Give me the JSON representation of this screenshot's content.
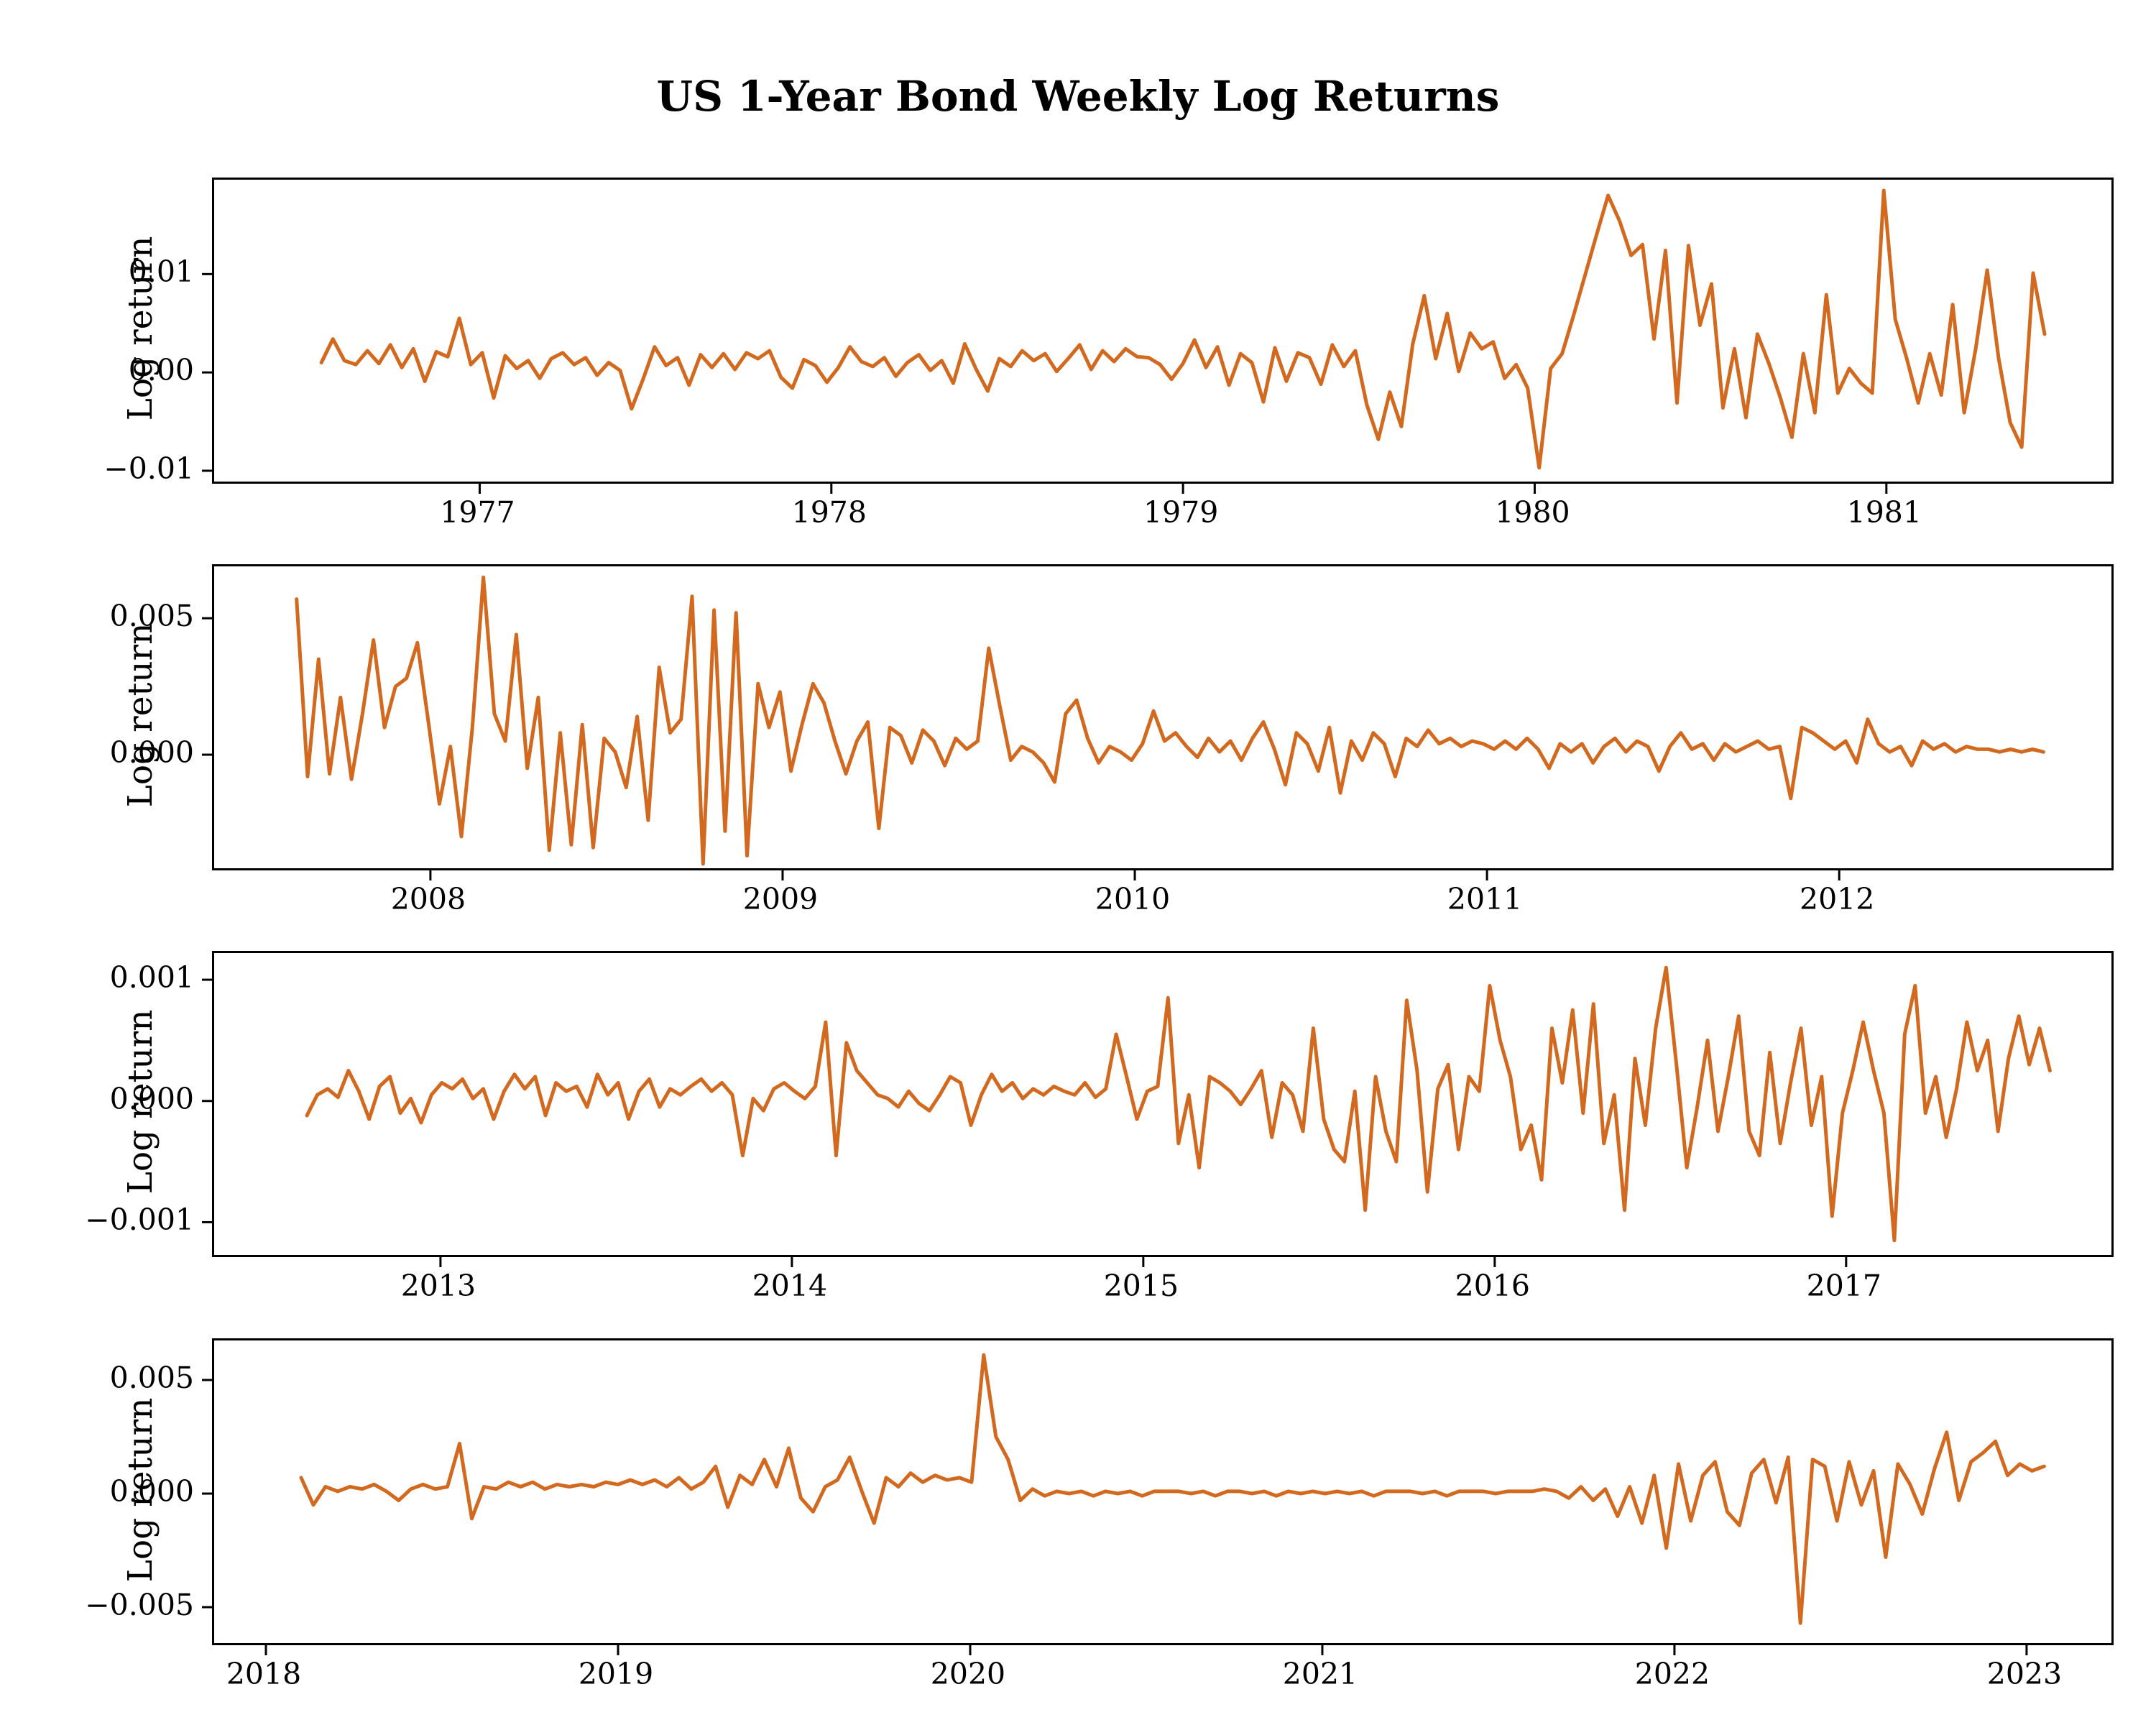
{
  "title": "US 1-Year Bond Weekly Log Returns",
  "line_color": "#d2691e",
  "axis_color": "#000000",
  "chart_data": [
    {
      "type": "line",
      "ylabel": "Log return",
      "xlim": [
        1976.245,
        1981.64
      ],
      "ylim": [
        -0.0111,
        0.0196
      ],
      "xticks": {
        "values": [
          1977,
          1978,
          1979,
          1980,
          1981
        ],
        "labels": [
          "1977",
          "1978",
          "1979",
          "1980",
          "1981"
        ]
      },
      "yticks": {
        "values": [
          0.01,
          0.0,
          -0.01
        ],
        "labels": [
          "0.01",
          "0.00",
          "−0.01"
        ]
      },
      "series": {
        "x_start": 1976.55,
        "x_end": 1981.45,
        "values": [
          0.001,
          0.0034,
          0.0012,
          0.0008,
          0.0022,
          0.0009,
          0.0028,
          0.0005,
          0.0024,
          -0.0009,
          0.0021,
          0.0016,
          0.0055,
          0.0008,
          0.002,
          -0.0026,
          0.0017,
          0.0004,
          0.0012,
          -0.0006,
          0.0014,
          0.002,
          0.0008,
          0.0015,
          -0.0003,
          0.001,
          0.0002,
          -0.0037,
          -0.0007,
          0.0026,
          0.0007,
          0.0015,
          -0.0013,
          0.0018,
          0.0005,
          0.0019,
          0.0003,
          0.002,
          0.0014,
          0.0022,
          -0.0005,
          -0.0016,
          0.0013,
          0.0007,
          -0.001,
          0.0005,
          0.0026,
          0.0011,
          0.0006,
          0.0015,
          -0.0004,
          0.001,
          0.0018,
          0.0002,
          0.0012,
          -0.0011,
          0.0029,
          0.0003,
          -0.0019,
          0.0014,
          0.0006,
          0.0022,
          0.0012,
          0.0019,
          0.0001,
          0.0014,
          0.0028,
          0.0003,
          0.0022,
          0.0011,
          0.0024,
          0.0016,
          0.0015,
          0.0008,
          -0.0007,
          0.0009,
          0.0033,
          0.0005,
          0.0026,
          -0.0013,
          0.0019,
          0.001,
          -0.003,
          0.0025,
          -0.0009,
          0.002,
          0.0015,
          -0.0012,
          0.0028,
          0.0006,
          0.0022,
          -0.0033,
          -0.0068,
          -0.002,
          -0.0055,
          0.0029,
          0.0078,
          0.0014,
          0.006,
          0.0001,
          0.004,
          0.0024,
          0.0031,
          -0.0006,
          0.0008,
          -0.0016,
          -0.0097,
          0.0004,
          0.0019,
          0.0058,
          0.0099,
          0.014,
          0.018,
          0.0154,
          0.0119,
          0.013,
          0.0034,
          0.0124,
          -0.0031,
          0.0129,
          0.0048,
          0.009,
          -0.0036,
          0.0024,
          -0.0046,
          0.0039,
          0.0009,
          -0.0026,
          -0.0066,
          0.0019,
          -0.0041,
          0.0079,
          -0.0021,
          0.0004,
          -0.0011,
          -0.0021,
          0.0185,
          0.0054,
          0.0014,
          -0.0031,
          0.0019,
          -0.0023,
          0.0069,
          -0.0041,
          0.0024,
          0.0104,
          0.0014,
          -0.0051,
          -0.0076,
          0.0101,
          0.0039
        ]
      }
    },
    {
      "type": "line",
      "ylabel": "Log return",
      "xlim": [
        2007.386,
        2012.773
      ],
      "ylim": [
        -0.00416,
        0.0069
      ],
      "xticks": {
        "values": [
          2008,
          2009,
          2010,
          2011,
          2012
        ],
        "labels": [
          "2008",
          "2009",
          "2010",
          "2011",
          "2012"
        ]
      },
      "yticks": {
        "values": [
          0.005,
          0.0
        ],
        "labels": [
          "0.005",
          "0.000"
        ]
      },
      "series": {
        "x_start": 2007.62,
        "x_end": 2012.58,
        "values": [
          0.0057,
          -0.0008,
          0.0035,
          -0.0007,
          0.0021,
          -0.0009,
          0.0015,
          0.0042,
          0.001,
          0.0025,
          0.0028,
          0.0041,
          0.0012,
          -0.0018,
          0.0003,
          -0.003,
          0.001,
          0.0065,
          0.0015,
          0.0005,
          0.0044,
          -0.0005,
          0.0021,
          -0.0035,
          0.0008,
          -0.0033,
          0.0011,
          -0.0034,
          0.0006,
          0.0001,
          -0.0012,
          0.0014,
          -0.0024,
          0.0032,
          0.0008,
          0.0013,
          0.0058,
          -0.004,
          0.0053,
          -0.0028,
          0.0052,
          -0.0037,
          0.0026,
          0.001,
          0.0023,
          -0.0006,
          0.0011,
          0.0026,
          0.0019,
          0.0005,
          -0.0007,
          0.0005,
          0.0012,
          -0.0027,
          0.001,
          0.0007,
          -0.0003,
          0.0009,
          0.0005,
          -0.0004,
          0.0006,
          0.0002,
          0.0005,
          0.0039,
          0.0018,
          -0.0002,
          0.0003,
          0.0001,
          -0.0003,
          -0.001,
          0.0015,
          0.002,
          0.0006,
          -0.0003,
          0.0003,
          0.0001,
          -0.0002,
          0.0004,
          0.0016,
          0.0005,
          0.0008,
          0.0003,
          -0.0001,
          0.0006,
          0.0001,
          0.0005,
          -0.0002,
          0.0006,
          0.0012,
          0.0002,
          -0.0011,
          0.0008,
          0.0004,
          -0.0006,
          0.001,
          -0.0014,
          0.0005,
          -0.0002,
          0.0008,
          0.0004,
          -0.0008,
          0.0006,
          0.0003,
          0.0009,
          0.0004,
          0.0006,
          0.0003,
          0.0005,
          0.0004,
          0.0002,
          0.0005,
          0.0002,
          0.0006,
          0.0002,
          -0.0005,
          0.0004,
          0.0001,
          0.0004,
          -0.0003,
          0.0003,
          0.0006,
          0.0001,
          0.0005,
          0.0003,
          -0.0006,
          0.0003,
          0.0008,
          0.0002,
          0.0004,
          -0.0002,
          0.0004,
          0.0001,
          0.0003,
          0.0005,
          0.0002,
          0.0003,
          -0.0016,
          0.001,
          0.0008,
          0.0005,
          0.0002,
          0.0005,
          -0.0003,
          0.0013,
          0.0004,
          0.0001,
          0.0003,
          -0.0004,
          0.0005,
          0.0002,
          0.0004,
          0.0001,
          0.0003,
          0.0002,
          0.0002,
          0.0001,
          0.0002,
          0.0001,
          0.0002,
          0.0001
        ]
      }
    },
    {
      "type": "line",
      "ylabel": "Log return",
      "xlim": [
        2012.356,
        2017.755
      ],
      "ylim": [
        -0.00127,
        0.00122
      ],
      "xticks": {
        "values": [
          2013,
          2014,
          2015,
          2016,
          2017
        ],
        "labels": [
          "2013",
          "2014",
          "2015",
          "2016",
          "2017"
        ]
      },
      "yticks": {
        "values": [
          0.001,
          0.0,
          -0.001
        ],
        "labels": [
          "0.001",
          "0.000",
          "−0.001"
        ]
      },
      "series": {
        "x_start": 2012.62,
        "x_end": 2017.58,
        "values": [
          -0.00012,
          5e-05,
          0.0001,
          3e-05,
          0.00025,
          8e-05,
          -0.00015,
          0.00012,
          0.0002,
          -0.0001,
          2e-05,
          -0.00018,
          5e-05,
          0.00015,
          0.0001,
          0.00018,
          2e-05,
          0.0001,
          -0.00015,
          8e-05,
          0.00022,
          0.0001,
          0.0002,
          -0.00012,
          0.00015,
          8e-05,
          0.00012,
          -5e-05,
          0.00022,
          5e-05,
          0.00015,
          -0.00015,
          8e-05,
          0.00018,
          -5e-05,
          0.0001,
          5e-05,
          0.00012,
          0.00018,
          8e-05,
          0.00015,
          5e-05,
          -0.00045,
          2e-05,
          -8e-05,
          0.0001,
          0.00015,
          8e-05,
          2e-05,
          0.00012,
          0.00065,
          -0.00045,
          0.00048,
          0.00025,
          0.00015,
          5e-05,
          2e-05,
          -5e-05,
          8e-05,
          -2e-05,
          -8e-05,
          5e-05,
          0.0002,
          0.00015,
          -0.0002,
          5e-05,
          0.00022,
          8e-05,
          0.00015,
          2e-05,
          0.0001,
          5e-05,
          0.00012,
          8e-05,
          5e-05,
          0.00015,
          3e-05,
          0.0001,
          0.00055,
          0.0002,
          -0.00015,
          8e-05,
          0.00012,
          0.00085,
          -0.00035,
          5e-05,
          -0.00055,
          0.0002,
          0.00015,
          8e-05,
          -3e-05,
          0.0001,
          0.00025,
          -0.0003,
          0.00015,
          5e-05,
          -0.00025,
          0.0006,
          -0.00015,
          -0.0004,
          -0.0005,
          8e-05,
          -0.0009,
          0.0002,
          -0.00025,
          -0.0005,
          0.00083,
          0.00025,
          -0.00075,
          0.0001,
          0.0003,
          -0.0004,
          0.0002,
          8e-05,
          0.00095,
          0.0005,
          0.0002,
          -0.0004,
          -0.0002,
          -0.00065,
          0.0006,
          0.00015,
          0.00075,
          -0.0001,
          0.0008,
          -0.00035,
          5e-05,
          -0.0009,
          0.00035,
          -0.0002,
          0.0006,
          0.0011,
          0.0003,
          -0.00055,
          -5e-05,
          0.0005,
          -0.00025,
          0.0002,
          0.0007,
          -0.00025,
          -0.00045,
          0.0004,
          -0.00035,
          0.00015,
          0.0006,
          -0.0002,
          0.0002,
          -0.00095,
          -0.0001,
          0.00025,
          0.00065,
          0.00025,
          -0.0001,
          -0.00115,
          0.00055,
          0.00095,
          -0.0001,
          0.0002,
          -0.0003,
          0.0001,
          0.00065,
          0.00025,
          0.0005,
          -0.00025,
          0.00035,
          0.0007,
          0.0003,
          0.0006,
          0.00025
        ]
      }
    },
    {
      "type": "line",
      "ylabel": "Log return",
      "xlim": [
        2017.853,
        2023.241
      ],
      "ylim": [
        -0.00658,
        0.00674
      ],
      "xticks": {
        "values": [
          2018,
          2019,
          2020,
          2021,
          2022,
          2023
        ],
        "labels": [
          "2018",
          "2019",
          "2020",
          "2021",
          "2022",
          "2023"
        ]
      },
      "yticks": {
        "values": [
          0.005,
          0.0,
          -0.005
        ],
        "labels": [
          "0.005",
          "0.000",
          "−0.005"
        ]
      },
      "series": {
        "x_start": 2018.1,
        "x_end": 2023.05,
        "values": [
          0.0007,
          -0.0005,
          0.0003,
          0.0001,
          0.0003,
          0.0002,
          0.0004,
          0.0001,
          -0.0003,
          0.0002,
          0.0004,
          0.0002,
          0.0003,
          0.0022,
          -0.0011,
          0.0003,
          0.0002,
          0.0005,
          0.0003,
          0.0005,
          0.0002,
          0.0004,
          0.0003,
          0.0004,
          0.0003,
          0.0005,
          0.0004,
          0.0006,
          0.0004,
          0.0006,
          0.0003,
          0.0007,
          0.0002,
          0.0005,
          0.0012,
          -0.0006,
          0.0008,
          0.0004,
          0.0015,
          0.0003,
          0.002,
          -0.0002,
          -0.0008,
          0.0003,
          0.0006,
          0.0016,
          0.0001,
          -0.0013,
          0.0007,
          0.0003,
          0.0009,
          0.0005,
          0.0008,
          0.0006,
          0.0007,
          0.0005,
          0.0061,
          0.0025,
          0.0015,
          -0.0003,
          0.0002,
          -0.0001,
          0.0001,
          0.0,
          0.0001,
          -0.0001,
          0.0001,
          0.0,
          0.0001,
          -0.0001,
          0.0001,
          0.0001,
          0.0001,
          0.0,
          0.0001,
          -0.0001,
          0.0001,
          0.0001,
          0.0,
          0.0001,
          -0.0001,
          0.0001,
          0.0,
          0.0001,
          0.0,
          0.0001,
          0.0,
          0.0001,
          -0.0001,
          0.0001,
          0.0001,
          0.0001,
          0.0,
          0.0001,
          -0.0001,
          0.0001,
          0.0001,
          0.0001,
          0.0,
          0.0001,
          0.0001,
          0.0001,
          0.0002,
          0.0001,
          -0.0002,
          0.0003,
          -0.0003,
          0.0002,
          -0.001,
          0.0003,
          -0.0013,
          0.0008,
          -0.0024,
          0.0013,
          -0.0012,
          0.0008,
          0.0014,
          -0.0008,
          -0.0014,
          0.0009,
          0.0015,
          -0.0004,
          0.0016,
          -0.0057,
          0.0015,
          0.0012,
          -0.0012,
          0.0014,
          -0.0005,
          0.001,
          -0.0028,
          0.0013,
          0.0004,
          -0.0009,
          0.0011,
          0.0027,
          -0.0003,
          0.0014,
          0.0018,
          0.0023,
          0.0008,
          0.0013,
          0.001,
          0.0012
        ]
      }
    }
  ],
  "layout_note": ""
}
